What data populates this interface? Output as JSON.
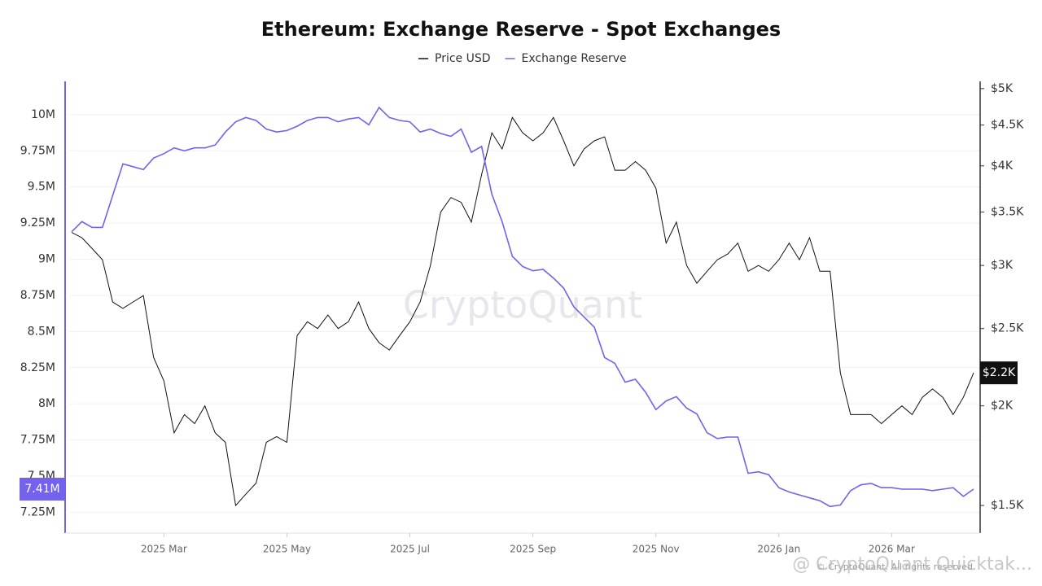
{
  "chart_data": {
    "type": "line",
    "title": "Ethereum: Exchange Reserve - Spot Exchanges",
    "watermark": "CryptoQuant",
    "footer": "© CryptoQuant. All rights reserved",
    "overlay": "@ CryptoQuant Quicktak...",
    "categories": [
      null,
      null,
      null,
      null,
      null,
      null,
      null,
      null,
      null,
      "2025 Mar",
      null,
      null,
      null,
      null,
      null,
      null,
      null,
      null,
      null,
      null,
      null,
      "2025 May",
      null,
      null,
      null,
      null,
      null,
      null,
      null,
      null,
      null,
      null,
      null,
      "2025 Jul",
      null,
      null,
      null,
      null,
      null,
      null,
      null,
      null,
      null,
      null,
      null,
      "2025 Sep",
      null,
      null,
      null,
      null,
      null,
      null,
      null,
      null,
      null,
      null,
      null,
      "2025 Nov",
      null,
      null,
      null,
      null,
      null,
      null,
      null,
      null,
      null,
      null,
      null,
      "2026 Jan",
      null,
      null,
      null,
      null,
      null,
      null,
      null,
      null,
      null,
      null,
      "2026 Mar",
      null,
      null,
      null,
      null,
      null,
      null,
      null,
      null
    ],
    "series": [
      {
        "name": "Price USD",
        "color": "#111111",
        "axis": "y2",
        "last_label": "$2.2K",
        "values": [
          3300,
          3250,
          3150,
          3050,
          2700,
          2650,
          2700,
          2750,
          2300,
          2150,
          1850,
          1950,
          1900,
          2000,
          1850,
          1800,
          1500,
          1550,
          1600,
          1800,
          1830,
          1800,
          2450,
          2550,
          2500,
          2600,
          2500,
          2550,
          2700,
          2500,
          2400,
          2350,
          2450,
          2550,
          2700,
          3000,
          3500,
          3650,
          3600,
          3400,
          3900,
          4400,
          4200,
          4600,
          4400,
          4300,
          4400,
          4600,
          4300,
          4000,
          4200,
          4300,
          4350,
          3950,
          3950,
          4050,
          3950,
          3750,
          3200,
          3400,
          3000,
          2850,
          2950,
          3050,
          3100,
          3200,
          2950,
          3000,
          2950,
          3050,
          3200,
          3050,
          3250,
          2950,
          2950,
          2200,
          1950,
          1950,
          1950,
          1900,
          1950,
          2000,
          1950,
          2050,
          2100,
          2050,
          1950,
          2050,
          2200
        ]
      },
      {
        "name": "Exchange Reserve",
        "color": "#7262ec",
        "last_label": "7.41M",
        "values": [
          9190000,
          9260000,
          9220000,
          9220000,
          9440000,
          9660000,
          9640000,
          9620000,
          9700000,
          9730000,
          9770000,
          9750000,
          9770000,
          9770000,
          9790000,
          9880000,
          9950000,
          9980000,
          9960000,
          9900000,
          9880000,
          9890000,
          9920000,
          9960000,
          9980000,
          9980000,
          9950000,
          9970000,
          9980000,
          9930000,
          10050000,
          9980000,
          9960000,
          9950000,
          9880000,
          9900000,
          9870000,
          9850000,
          9900000,
          9740000,
          9780000,
          9450000,
          9260000,
          9020000,
          8950000,
          8920000,
          8930000,
          8870000,
          8800000,
          8670000,
          8600000,
          8530000,
          8320000,
          8280000,
          8150000,
          8170000,
          8080000,
          7960000,
          8020000,
          8050000,
          7970000,
          7930000,
          7800000,
          7760000,
          7770000,
          7770000,
          7520000,
          7530000,
          7510000,
          7420000,
          7390000,
          7370000,
          7350000,
          7330000,
          7290000,
          7300000,
          7400000,
          7440000,
          7450000,
          7420000,
          7420000,
          7410000,
          7410000,
          7410000,
          7400000,
          7410000,
          7420000,
          7360000,
          7410000
        ]
      }
    ],
    "ylim": [
      7106000,
      10230000
    ],
    "yticks": [
      {
        "value": 7250000,
        "label": "7.25M"
      },
      {
        "value": 7500000,
        "label": "7.5M"
      },
      {
        "value": 7750000,
        "label": "7.75M"
      },
      {
        "value": 8000000,
        "label": "8M"
      },
      {
        "value": 8250000,
        "label": "8.25M"
      },
      {
        "value": 8500000,
        "label": "8.5M"
      },
      {
        "value": 8750000,
        "label": "8.75M"
      },
      {
        "value": 9000000,
        "label": "9M"
      },
      {
        "value": 9250000,
        "label": "9.25M"
      },
      {
        "value": 9500000,
        "label": "9.5M"
      },
      {
        "value": 9750000,
        "label": "9.75M"
      },
      {
        "value": 10000000,
        "label": "10M"
      }
    ],
    "y2lim": [
      1385,
      5105
    ],
    "y2scale": "log",
    "y2ticks": [
      {
        "value": 1500,
        "label": "$1.5K"
      },
      {
        "value": 2000,
        "label": "$2K"
      },
      {
        "value": 2500,
        "label": "$2.5K"
      },
      {
        "value": 3000,
        "label": "$3K"
      },
      {
        "value": 3500,
        "label": "$3.5K"
      },
      {
        "value": 4000,
        "label": "$4K"
      },
      {
        "value": 4500,
        "label": "$4.5K"
      },
      {
        "value": 5000,
        "label": "$5K"
      }
    ],
    "grid": true,
    "legend": "top"
  }
}
